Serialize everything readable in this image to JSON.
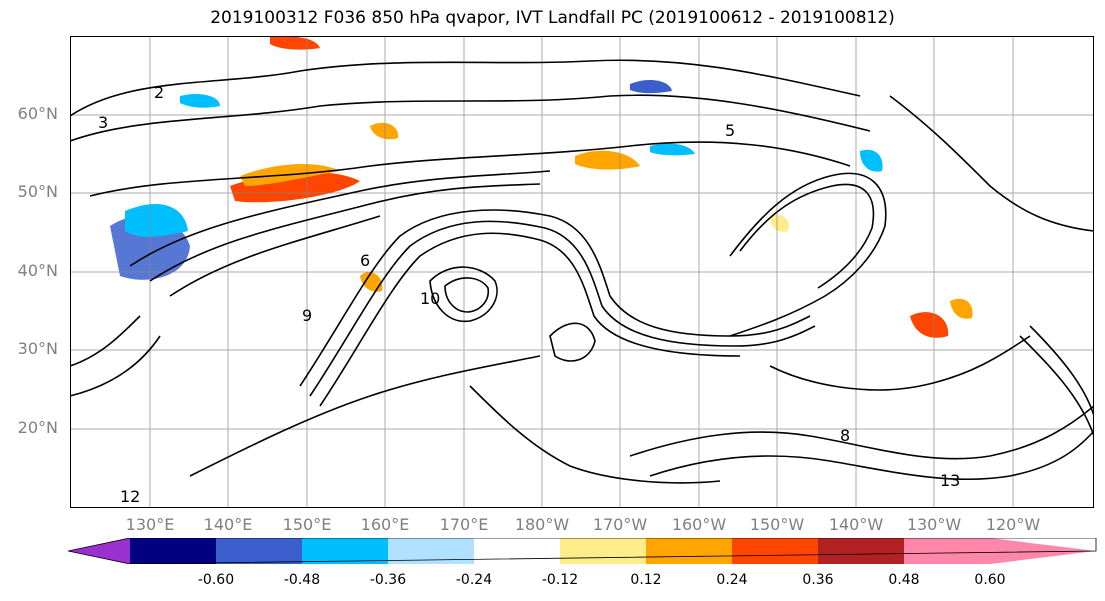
{
  "title": "2019100312 F036 850 hPa qvapor, IVT Landfall PC (2019100612 - 2019100812)",
  "map": {
    "type": "contour-map",
    "region": "North Pacific",
    "latitude_labels": [
      "60°N",
      "50°N",
      "40°N",
      "30°N",
      "20°N"
    ],
    "longitude_labels": [
      "130°E",
      "140°E",
      "150°E",
      "160°E",
      "170°E",
      "180°W",
      "170°W",
      "160°W",
      "150°W",
      "140°W",
      "130°W",
      "120°W"
    ],
    "gridlines": true,
    "coastlines": true,
    "contour_color": "#000000",
    "contour_labels": [
      "2",
      "3",
      "5",
      "6",
      "8",
      "9",
      "10",
      "12",
      "13"
    ]
  },
  "colorbar": {
    "orientation": "horizontal",
    "extend": "both",
    "ticks": [
      "-0.60",
      "-0.48",
      "-0.36",
      "-0.24",
      "-0.12",
      "0.12",
      "0.24",
      "0.36",
      "0.48",
      "0.60"
    ],
    "colors": [
      "#9b30d0",
      "#000080",
      "#3a5fcd",
      "#00bfff",
      "#b0e2ff",
      "#ffffff",
      "#ffec8b",
      "#ffa500",
      "#ff4500",
      "#b22222",
      "#ff88aa"
    ]
  }
}
